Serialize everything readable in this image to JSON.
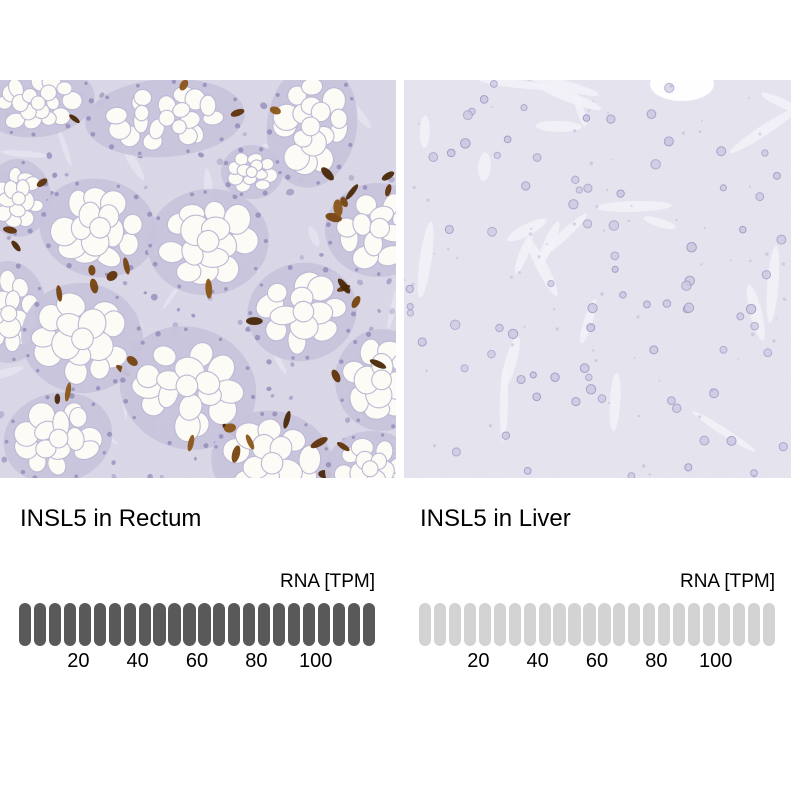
{
  "figure": {
    "panels": [
      {
        "id": "rectum",
        "title": "INSL5 in Rectum",
        "axis_label": "RNA [TPM]",
        "bar": {
          "segment_count": 24,
          "filled_segments": 24
        },
        "ticks": [
          {
            "label": "20",
            "tpm": 20
          },
          {
            "label": "40",
            "tpm": 40
          },
          {
            "label": "60",
            "tpm": 60
          },
          {
            "label": "80",
            "tpm": 80
          },
          {
            "label": "100",
            "tpm": 100
          }
        ]
      },
      {
        "id": "liver",
        "title": "INSL5 in Liver",
        "axis_label": "RNA [TPM]",
        "bar": {
          "segment_count": 24,
          "filled_segments": 0
        },
        "ticks": [
          {
            "label": "20",
            "tpm": 20
          },
          {
            "label": "40",
            "tpm": 40
          },
          {
            "label": "60",
            "tpm": 60
          },
          {
            "label": "80",
            "tpm": 80
          },
          {
            "label": "100",
            "tpm": 100
          }
        ]
      }
    ]
  },
  "chart_data": [
    {
      "type": "bar",
      "title": "INSL5 in Rectum",
      "xlabel": "RNA [TPM]",
      "categories": [
        "INSL5"
      ],
      "values": [
        120
      ],
      "axis_ticks": [
        20,
        40,
        60,
        80,
        100
      ],
      "axis_range": [
        0,
        120
      ],
      "segments_total": 24,
      "segments_filled": 24,
      "note": "gauge bar fully filled (all 24 dark segments, ~5 TPM per segment)"
    },
    {
      "type": "bar",
      "title": "INSL5 in Liver",
      "xlabel": "RNA [TPM]",
      "categories": [
        "INSL5"
      ],
      "values": [
        0
      ],
      "axis_ticks": [
        20,
        40,
        60,
        80,
        100
      ],
      "axis_range": [
        0,
        120
      ],
      "segments_total": 24,
      "segments_filled": 0,
      "note": "gauge bar empty (all 24 segments light gray, ~0 TPM)"
    }
  ],
  "colors": {
    "background": "#ffffff",
    "text": "#000000",
    "bar_filled": "#595959",
    "bar_empty": "#d3d3d3",
    "tissue_bg_rectum": "#dcd9e8",
    "tissue_bg_liver": "#e8e6f0",
    "nuclei": "#8f8bb8",
    "dab_brown": "#6b3a10"
  }
}
